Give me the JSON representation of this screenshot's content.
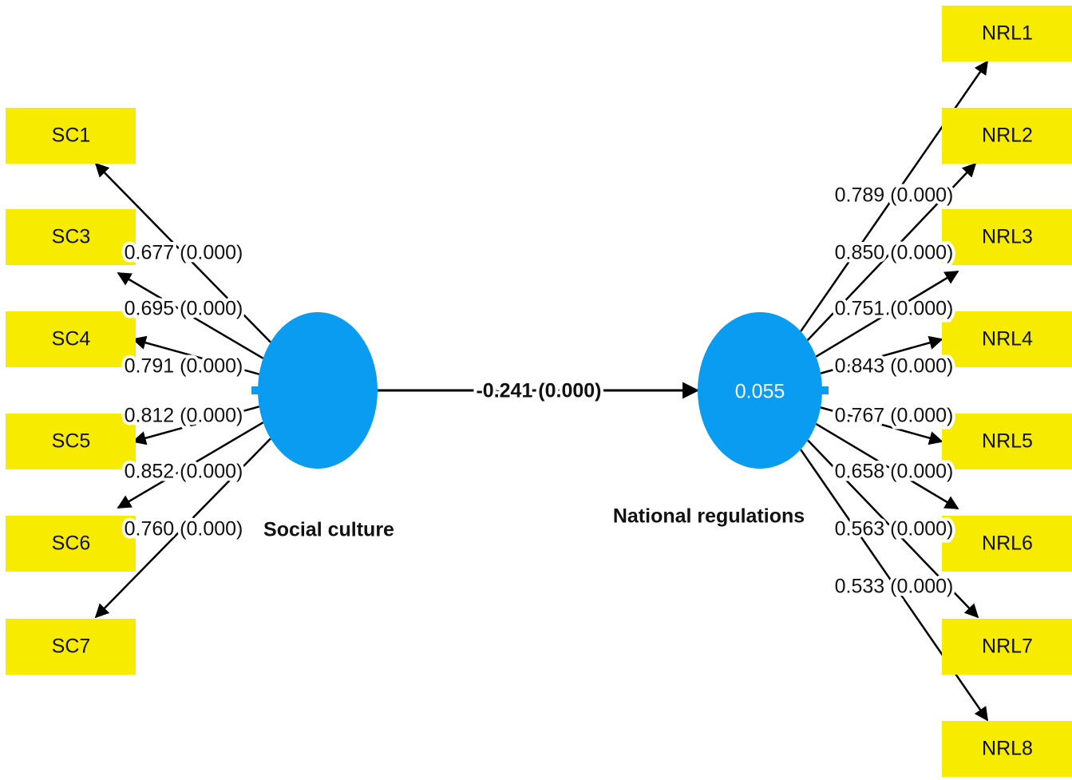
{
  "latent": [
    {
      "label": "Social culture",
      "indicators": [
        {
          "label": "SC1",
          "loading": "0.677 (0.000)"
        },
        {
          "label": "SC3",
          "loading": "0.695 (0.000)"
        },
        {
          "label": "SC4",
          "loading": "0.791 (0.000)"
        },
        {
          "label": "SC5",
          "loading": "0.812 (0.000)"
        },
        {
          "label": "SC6",
          "loading": "0.852 (0.000)"
        },
        {
          "label": "SC7",
          "loading": "0.760 (0.000)"
        }
      ]
    },
    {
      "label": "National regulations",
      "r2": "0.055",
      "indicators": [
        {
          "label": "NRL1",
          "loading": "0.789 (0.000)"
        },
        {
          "label": "NRL2",
          "loading": "0.850 (0.000)"
        },
        {
          "label": "NRL3",
          "loading": "0.751 (0.000)"
        },
        {
          "label": "NRL4",
          "loading": "0.843 (0.000)"
        },
        {
          "label": "NRL5",
          "loading": "0.767 (0.000)"
        },
        {
          "label": "NRL6",
          "loading": "0.658 (0.000)"
        },
        {
          "label": "NRL7",
          "loading": "0.563 (0.000)"
        },
        {
          "label": "NRL8",
          "loading": "0.533 (0.000)"
        }
      ]
    }
  ],
  "path": {
    "label": "-0.241 (0.000)"
  }
}
